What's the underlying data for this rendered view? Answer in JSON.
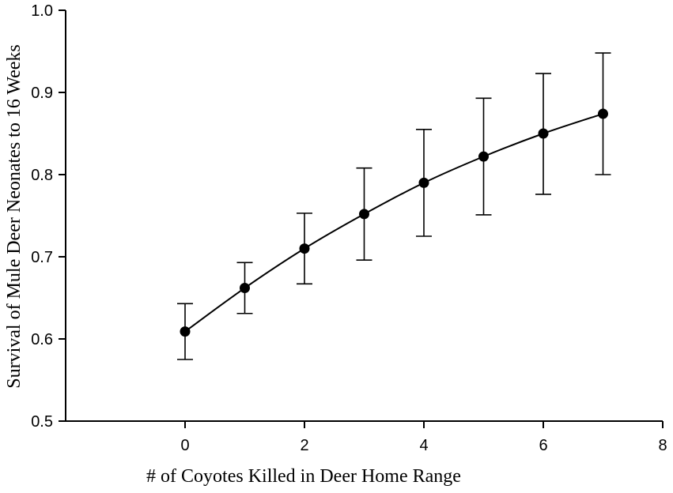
{
  "chart_data": {
    "type": "line",
    "title": "",
    "xlabel": "# of Coyotes Killed in Deer Home Range",
    "ylabel": "Survival of Mule Deer Neonates to 16 Weeks",
    "xlim": [
      -2,
      8
    ],
    "ylim": [
      0.5,
      1.0
    ],
    "x_ticks": [
      0,
      2,
      4,
      6,
      8
    ],
    "x_tick_labels": [
      "0",
      "2",
      "4",
      "6",
      "8"
    ],
    "y_ticks": [
      0.5,
      0.6,
      0.7,
      0.8,
      0.9,
      1.0
    ],
    "y_tick_labels": [
      "0.5",
      "0.6",
      "0.7",
      "0.8",
      "0.9",
      "1.0"
    ],
    "grid": false,
    "series": [
      {
        "x": [
          0,
          1,
          2,
          3,
          4,
          5,
          6,
          7
        ],
        "y": [
          0.609,
          0.662,
          0.71,
          0.752,
          0.79,
          0.822,
          0.85,
          0.874
        ],
        "error_lower": [
          0.575,
          0.631,
          0.667,
          0.696,
          0.725,
          0.751,
          0.776,
          0.8
        ],
        "error_upper": [
          0.643,
          0.693,
          0.753,
          0.808,
          0.855,
          0.893,
          0.923,
          0.948
        ],
        "color": "#000000"
      }
    ]
  }
}
